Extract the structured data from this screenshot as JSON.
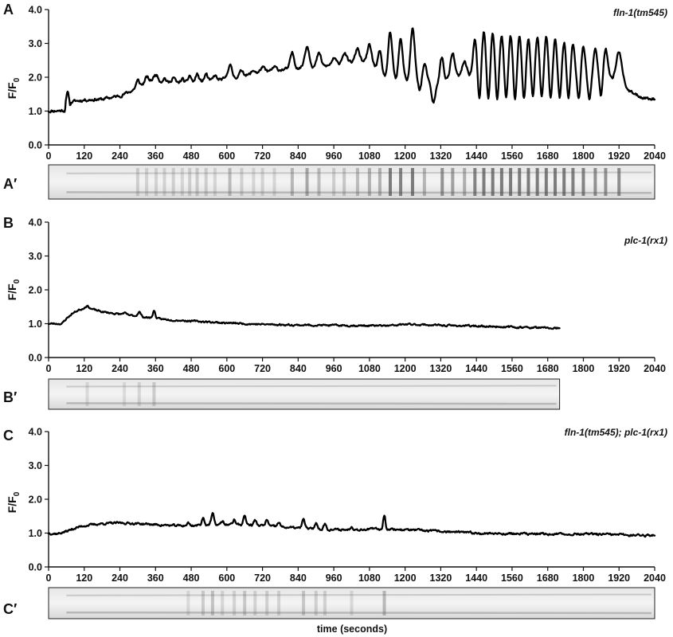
{
  "figure": {
    "x_axis_title": "time (seconds)",
    "y_axis_label_main": "F/F",
    "y_axis_label_sub": "0",
    "kymograph_label_suffix": "′"
  },
  "chart_data": [
    {
      "panel": "A",
      "kymograph_panel": "A′",
      "type": "line",
      "genotype": "fln-1(tm545)",
      "xlim": [
        0,
        2040
      ],
      "ylim": [
        0.0,
        4.0
      ],
      "xticks": [
        0,
        120,
        240,
        360,
        480,
        600,
        720,
        840,
        960,
        1080,
        1200,
        1320,
        1440,
        1560,
        1680,
        1800,
        1920,
        2040
      ],
      "yticks": [
        "0.0",
        "1.0",
        "2.0",
        "3.0",
        "4.0"
      ],
      "x_end": 2040,
      "baseline": [
        [
          0,
          1.0
        ],
        [
          55,
          1.02
        ],
        [
          58,
          1.3
        ],
        [
          62,
          1.5
        ],
        [
          66,
          1.55
        ],
        [
          72,
          1.2
        ],
        [
          80,
          1.28
        ],
        [
          120,
          1.33
        ],
        [
          180,
          1.35
        ],
        [
          240,
          1.45
        ],
        [
          280,
          1.6
        ],
        [
          300,
          1.7
        ],
        [
          330,
          1.85
        ],
        [
          360,
          1.95
        ],
        [
          380,
          1.85
        ],
        [
          420,
          1.82
        ],
        [
          480,
          1.85
        ],
        [
          540,
          1.9
        ],
        [
          600,
          1.95
        ],
        [
          660,
          2.05
        ],
        [
          720,
          2.15
        ],
        [
          780,
          2.22
        ],
        [
          840,
          2.28
        ],
        [
          900,
          2.3
        ],
        [
          960,
          2.35
        ],
        [
          1000,
          2.45
        ],
        [
          1060,
          2.45
        ],
        [
          1080,
          2.4
        ],
        [
          1120,
          2.2
        ],
        [
          1200,
          2.05
        ],
        [
          1260,
          1.95
        ],
        [
          1300,
          1.75
        ],
        [
          1320,
          1.85
        ],
        [
          1360,
          2.0
        ],
        [
          1420,
          2.05
        ],
        [
          1500,
          2.0
        ],
        [
          1600,
          1.95
        ],
        [
          1700,
          1.92
        ],
        [
          1800,
          1.9
        ],
        [
          1880,
          1.95
        ],
        [
          1930,
          1.8
        ],
        [
          1960,
          1.55
        ],
        [
          2000,
          1.4
        ],
        [
          2040,
          1.35
        ]
      ],
      "peaks": [
        [
          300,
          1.9,
          8
        ],
        [
          330,
          2.0,
          8
        ],
        [
          362,
          2.08,
          10
        ],
        [
          390,
          1.98,
          8
        ],
        [
          420,
          2.0,
          8
        ],
        [
          450,
          1.95,
          7
        ],
        [
          475,
          2.05,
          7
        ],
        [
          500,
          2.1,
          7
        ],
        [
          530,
          2.1,
          7
        ],
        [
          560,
          2.05,
          7
        ],
        [
          610,
          2.38,
          9
        ],
        [
          650,
          2.2,
          9
        ],
        [
          690,
          2.2,
          9
        ],
        [
          720,
          2.3,
          9
        ],
        [
          760,
          2.3,
          9
        ],
        [
          820,
          2.72,
          9
        ],
        [
          870,
          2.92,
          11
        ],
        [
          910,
          2.7,
          10
        ],
        [
          960,
          2.55,
          10
        ],
        [
          995,
          2.72,
          10
        ],
        [
          1040,
          2.85,
          10
        ],
        [
          1080,
          2.95,
          10
        ],
        [
          1115,
          2.75,
          9
        ],
        [
          1150,
          3.3,
          9
        ],
        [
          1185,
          3.15,
          9
        ],
        [
          1225,
          3.45,
          10
        ],
        [
          1265,
          2.4,
          10
        ],
        [
          1325,
          2.75,
          10
        ],
        [
          1360,
          2.7,
          10
        ],
        [
          1400,
          2.6,
          10
        ],
        [
          1435,
          3.1,
          9
        ],
        [
          1465,
          3.35,
          9
        ],
        [
          1495,
          3.3,
          9
        ],
        [
          1525,
          3.25,
          9
        ],
        [
          1555,
          3.25,
          9
        ],
        [
          1585,
          3.2,
          9
        ],
        [
          1615,
          3.2,
          9
        ],
        [
          1645,
          3.2,
          9
        ],
        [
          1675,
          3.2,
          9
        ],
        [
          1705,
          3.15,
          9
        ],
        [
          1735,
          3.05,
          9
        ],
        [
          1765,
          3.0,
          9
        ],
        [
          1800,
          2.95,
          9
        ],
        [
          1840,
          2.82,
          10
        ],
        [
          1875,
          2.82,
          10
        ],
        [
          1920,
          2.75,
          14
        ]
      ],
      "dips": [
        [
          1130,
          2.0,
          9
        ],
        [
          1170,
          1.9,
          9
        ],
        [
          1210,
          1.85,
          9
        ],
        [
          1250,
          1.6,
          9
        ],
        [
          1295,
          1.25,
          9
        ],
        [
          1330,
          1.6,
          8
        ],
        [
          1400,
          1.9,
          8
        ],
        [
          1450,
          1.25,
          7
        ],
        [
          1480,
          1.2,
          7
        ],
        [
          1510,
          1.2,
          7
        ],
        [
          1540,
          1.22,
          7
        ],
        [
          1570,
          1.22,
          7
        ],
        [
          1600,
          1.22,
          7
        ],
        [
          1630,
          1.25,
          7
        ],
        [
          1660,
          1.25,
          7
        ],
        [
          1690,
          1.25,
          7
        ],
        [
          1720,
          1.25,
          7
        ],
        [
          1750,
          1.28,
          7
        ],
        [
          1785,
          1.3,
          7
        ],
        [
          1820,
          1.32,
          7
        ],
        [
          1860,
          1.35,
          7
        ]
      ],
      "noise": 0.035,
      "seed": 11
    },
    {
      "panel": "B",
      "kymograph_panel": "B′",
      "type": "line",
      "genotype": "plc-1(rx1)",
      "xlim": [
        0,
        2040
      ],
      "ylim": [
        0.0,
        4.0
      ],
      "xticks": [
        0,
        120,
        240,
        360,
        480,
        600,
        720,
        840,
        960,
        1080,
        1200,
        1320,
        1440,
        1560,
        1680,
        1800,
        1920,
        2040
      ],
      "yticks": [
        "0.0",
        "1.0",
        "2.0",
        "3.0",
        "4.0"
      ],
      "x_end": 1720,
      "baseline": [
        [
          0,
          1.0
        ],
        [
          45,
          1.0
        ],
        [
          60,
          1.15
        ],
        [
          80,
          1.3
        ],
        [
          100,
          1.4
        ],
        [
          120,
          1.45
        ],
        [
          150,
          1.42
        ],
        [
          180,
          1.35
        ],
        [
          240,
          1.28
        ],
        [
          300,
          1.22
        ],
        [
          360,
          1.15
        ],
        [
          400,
          1.12
        ],
        [
          480,
          1.08
        ],
        [
          600,
          1.02
        ],
        [
          720,
          0.98
        ],
        [
          840,
          0.96
        ],
        [
          960,
          0.95
        ],
        [
          1080,
          0.94
        ],
        [
          1150,
          0.94
        ],
        [
          1200,
          0.98
        ],
        [
          1260,
          0.97
        ],
        [
          1320,
          0.95
        ],
        [
          1440,
          0.93
        ],
        [
          1560,
          0.9
        ],
        [
          1680,
          0.87
        ],
        [
          1720,
          0.86
        ]
      ],
      "peaks": [
        [
          130,
          1.52,
          10
        ],
        [
          255,
          1.32,
          7
        ],
        [
          305,
          1.35,
          7
        ],
        [
          355,
          1.38,
          6
        ]
      ],
      "dips": [],
      "noise": 0.02,
      "seed": 23
    },
    {
      "panel": "C",
      "kymograph_panel": "C′",
      "type": "line",
      "genotype": "fln-1(tm545); plc-1(rx1)",
      "xlim": [
        0,
        2040
      ],
      "ylim": [
        0.0,
        4.0
      ],
      "xticks": [
        0,
        120,
        240,
        360,
        480,
        600,
        720,
        840,
        960,
        1080,
        1200,
        1320,
        1440,
        1560,
        1680,
        1800,
        1920,
        2040
      ],
      "yticks": [
        "0.0",
        "1.0",
        "2.0",
        "3.0",
        "4.0"
      ],
      "x_end": 2040,
      "baseline": [
        [
          0,
          1.0
        ],
        [
          30,
          0.98
        ],
        [
          60,
          1.05
        ],
        [
          90,
          1.15
        ],
        [
          120,
          1.22
        ],
        [
          180,
          1.28
        ],
        [
          240,
          1.3
        ],
        [
          300,
          1.28
        ],
        [
          360,
          1.25
        ],
        [
          420,
          1.22
        ],
        [
          480,
          1.22
        ],
        [
          540,
          1.25
        ],
        [
          600,
          1.25
        ],
        [
          660,
          1.25
        ],
        [
          720,
          1.22
        ],
        [
          780,
          1.18
        ],
        [
          840,
          1.15
        ],
        [
          900,
          1.12
        ],
        [
          960,
          1.1
        ],
        [
          1020,
          1.1
        ],
        [
          1080,
          1.12
        ],
        [
          1140,
          1.12
        ],
        [
          1200,
          1.1
        ],
        [
          1320,
          1.05
        ],
        [
          1440,
          1.0
        ],
        [
          1560,
          0.98
        ],
        [
          1680,
          0.97
        ],
        [
          1800,
          0.97
        ],
        [
          1920,
          0.95
        ],
        [
          2040,
          0.93
        ]
      ],
      "peaks": [
        [
          470,
          1.3,
          6
        ],
        [
          520,
          1.45,
          6
        ],
        [
          552,
          1.58,
          6
        ],
        [
          585,
          1.35,
          6
        ],
        [
          625,
          1.4,
          6
        ],
        [
          660,
          1.52,
          6
        ],
        [
          695,
          1.38,
          6
        ],
        [
          735,
          1.4,
          6
        ],
        [
          775,
          1.32,
          6
        ],
        [
          858,
          1.42,
          6
        ],
        [
          900,
          1.3,
          6
        ],
        [
          930,
          1.28,
          6
        ],
        [
          1020,
          1.2,
          6
        ],
        [
          1130,
          1.55,
          5
        ]
      ],
      "dips": [],
      "noise": 0.025,
      "seed": 37
    }
  ]
}
